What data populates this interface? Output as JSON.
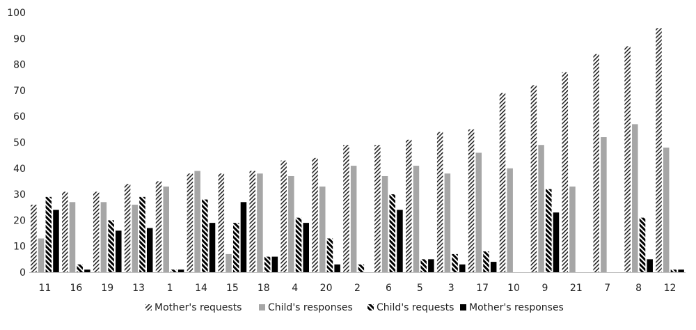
{
  "chart_data": {
    "type": "bar",
    "title": "",
    "xlabel": "",
    "ylabel": "",
    "ylim": [
      0,
      100
    ],
    "yticks": [
      0,
      10,
      20,
      30,
      40,
      50,
      60,
      70,
      80,
      90,
      100
    ],
    "grid": false,
    "legend_position": "bottom",
    "categories": [
      "11",
      "16",
      "19",
      "13",
      "1",
      "14",
      "15",
      "18",
      "4",
      "20",
      "2",
      "6",
      "5",
      "3",
      "17",
      "10",
      "9",
      "21",
      "7",
      "8",
      "12"
    ],
    "series": [
      {
        "name": "Mother's requests",
        "pattern": "diagonal-hatch-light",
        "color": "#222222",
        "values": [
          26,
          31,
          31,
          34,
          35,
          38,
          38,
          39,
          43,
          44,
          49,
          49,
          51,
          54,
          55,
          69,
          72,
          77,
          84,
          87,
          94
        ]
      },
      {
        "name": "Child's responses",
        "pattern": "solid",
        "color": "#a6a6a6",
        "values": [
          13,
          27,
          27,
          26,
          33,
          39,
          7,
          38,
          37,
          33,
          41,
          37,
          41,
          38,
          46,
          40,
          49,
          33,
          52,
          57,
          48
        ]
      },
      {
        "name": "Child's requests",
        "pattern": "diagonal-hatch-bold",
        "color": "#000000",
        "values": [
          29,
          3,
          20,
          29,
          1,
          28,
          19,
          6,
          21,
          13,
          3,
          30,
          5,
          7,
          8,
          0,
          32,
          0,
          0,
          21,
          1
        ]
      },
      {
        "name": "Mother's responses",
        "pattern": "solid",
        "color": "#000000",
        "values": [
          24,
          1,
          16,
          17,
          1,
          19,
          27,
          6,
          19,
          3,
          0,
          24,
          5,
          3,
          4,
          0,
          23,
          0,
          0,
          5,
          1
        ]
      }
    ]
  }
}
